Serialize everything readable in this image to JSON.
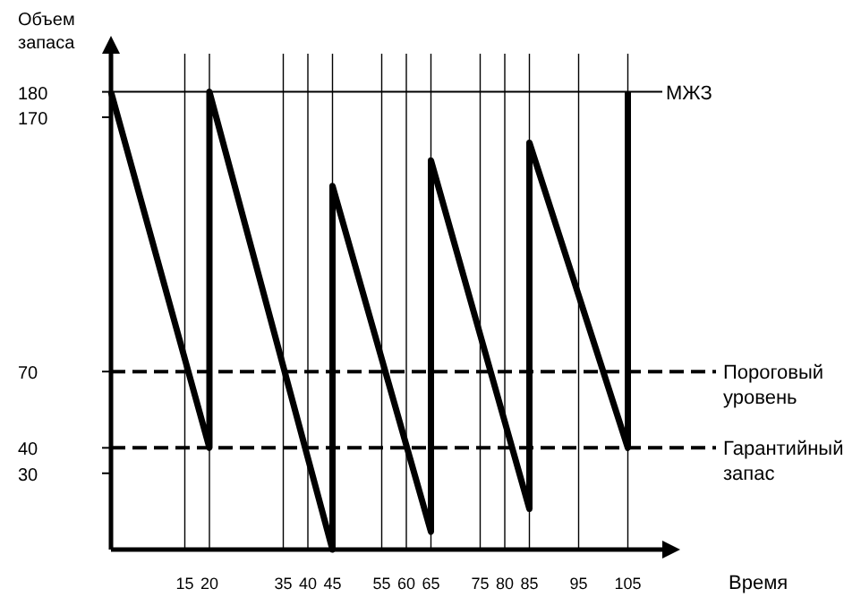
{
  "chart_data": {
    "type": "line",
    "ylabel": "Объем запаса",
    "xlabel": "Время",
    "x": [
      0,
      20,
      20,
      45,
      45,
      65,
      65,
      85,
      85,
      105,
      105
    ],
    "series": [
      {
        "color": "#000000",
        "values": [
          180,
          40,
          180,
          0,
          143,
          7,
          153,
          16,
          160,
          40,
          180
        ]
      }
    ],
    "xlim": [
      0,
      112
    ],
    "xticks": [
      15,
      20,
      35,
      40,
      45,
      55,
      60,
      65,
      75,
      80,
      85,
      95,
      105
    ],
    "ylim": [
      0,
      195
    ],
    "yticks": [
      30,
      40,
      70,
      170,
      180
    ],
    "grid": "x",
    "marker": "none",
    "line_style": "solid",
    "ref_lines": [
      {
        "axis": "y",
        "value": 180,
        "label": "МЖЗ",
        "line_style": "solid",
        "color": "#000000"
      },
      {
        "axis": "y",
        "value": 70,
        "label": "Пороговый уровень",
        "line_style": "dashed",
        "color": "#000000"
      },
      {
        "axis": "y",
        "value": 40,
        "label": "Гарантийный запас",
        "line_style": "dashed",
        "color": "#000000"
      }
    ]
  }
}
